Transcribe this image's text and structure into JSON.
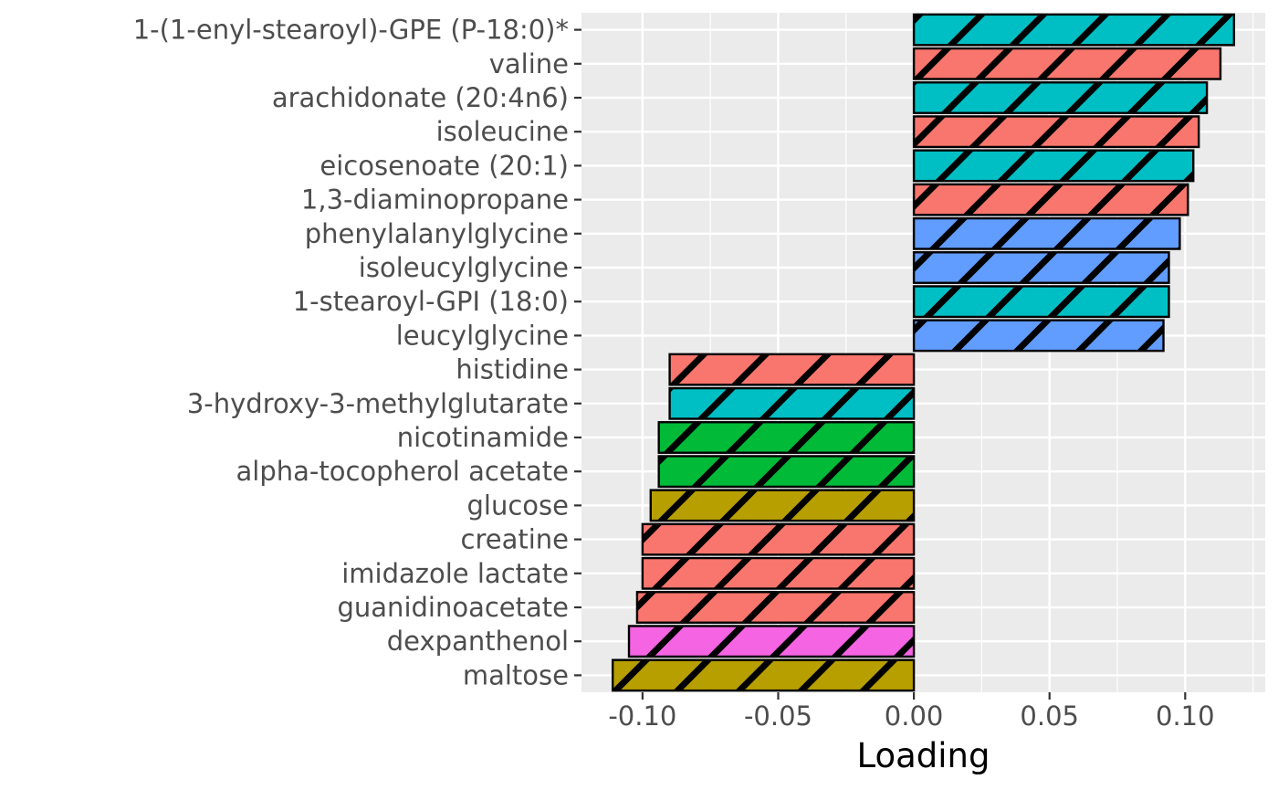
{
  "chart_data": {
    "type": "bar",
    "orientation": "horizontal",
    "xlabel": "Loading",
    "ylabel": "",
    "xlim": [
      -0.1225,
      0.1295
    ],
    "x_ticks": [
      -0.1,
      -0.05,
      0.0,
      0.05,
      0.1
    ],
    "x_tick_labels": [
      "-0.10",
      "-0.05",
      "0.00",
      "0.05",
      "0.10"
    ],
    "grid": true,
    "legend": "none",
    "bar_pattern": "diagonal stripes",
    "categories": [
      "1-(1-enyl-stearoyl)-GPE (P-18:0)*",
      "valine",
      "arachidonate (20:4n6)",
      "isoleucine",
      "eicosenoate (20:1)",
      "1,3-diaminopropane",
      "phenylalanylglycine",
      "isoleucylglycine",
      "1-stearoyl-GPI (18:0)",
      "leucylglycine",
      "histidine",
      "3-hydroxy-3-methylglutarate",
      "nicotinamide",
      "alpha-tocopherol acetate",
      "glucose",
      "creatine",
      "imidazole lactate",
      "guanidinoacetate",
      "dexpanthenol",
      "maltose"
    ],
    "values": [
      0.118,
      0.113,
      0.108,
      0.105,
      0.103,
      0.101,
      0.098,
      0.094,
      0.094,
      0.092,
      -0.09,
      -0.09,
      -0.094,
      -0.094,
      -0.097,
      -0.1,
      -0.1,
      -0.102,
      -0.105,
      -0.111
    ],
    "bar_colors": [
      "#00BFC4",
      "#F8766D",
      "#00BFC4",
      "#F8766D",
      "#00BFC4",
      "#F8766D",
      "#619CFF",
      "#619CFF",
      "#00BFC4",
      "#619CFF",
      "#F8766D",
      "#00BFC4",
      "#00BA38",
      "#00BA38",
      "#B79F00",
      "#F8766D",
      "#F8766D",
      "#F8766D",
      "#F564E3",
      "#B79F00"
    ]
  }
}
